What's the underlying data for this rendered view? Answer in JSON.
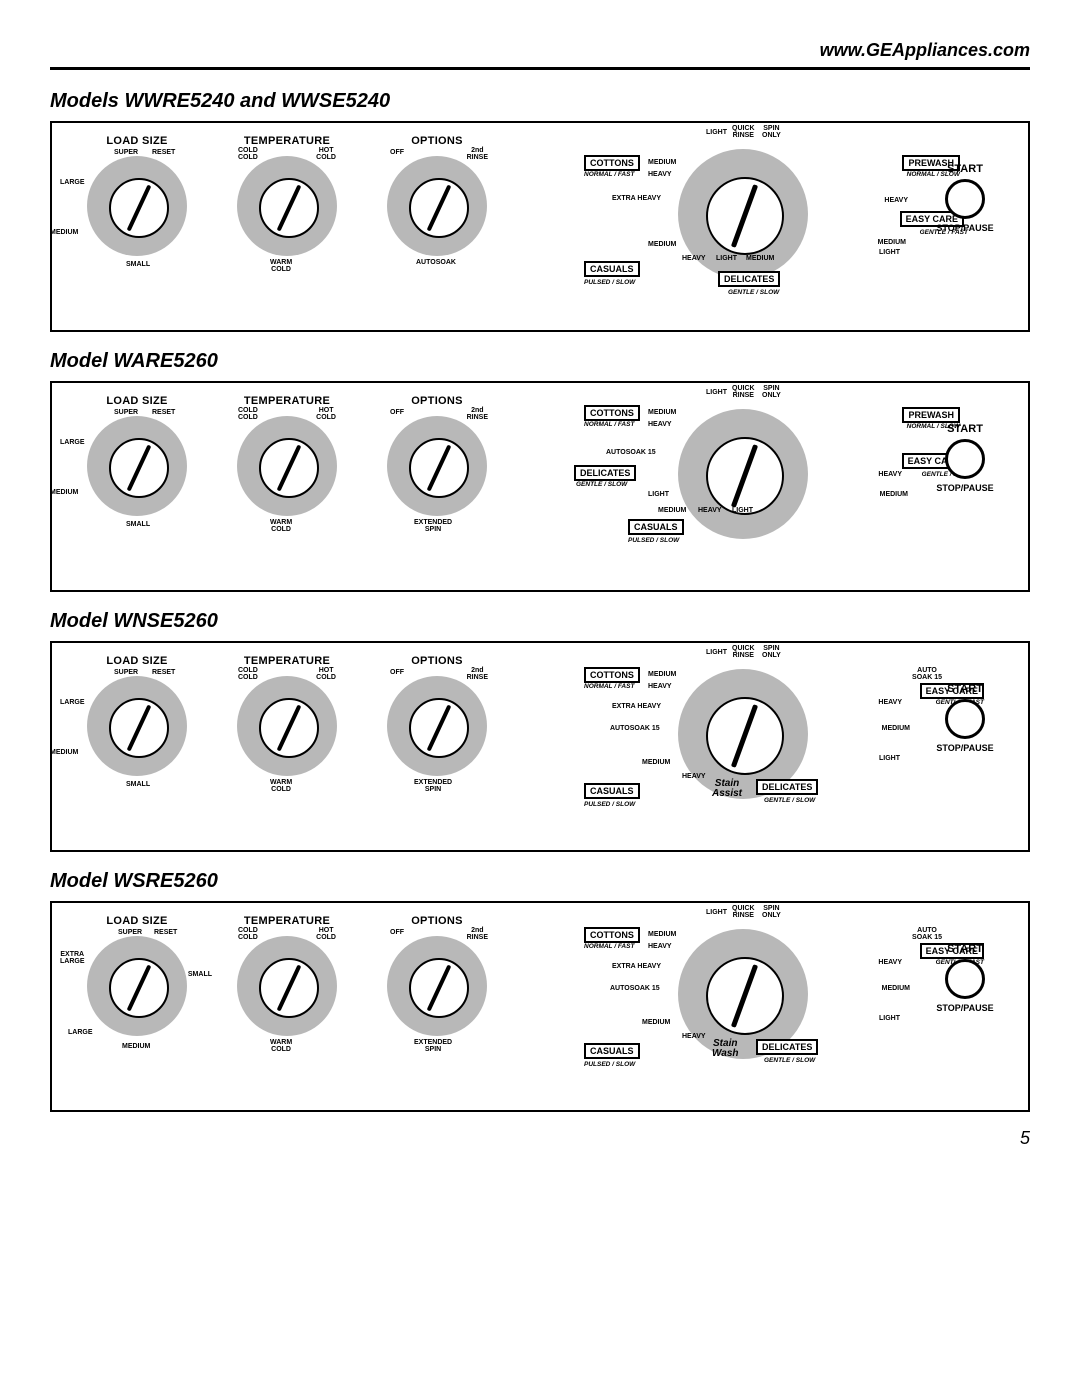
{
  "url": "www.GEAppliances.com",
  "page_number": "5",
  "load_size_title": "LOAD SIZE",
  "temperature_title": "TEMPERATURE",
  "options_title": "OPTIONS",
  "start_label": "START",
  "stop_label": "STOP/PAUSE",
  "ls": {
    "super": "SUPER",
    "reset": "RESET",
    "large": "LARGE",
    "medium": "MEDIUM",
    "small": "SMALL",
    "extra_large": "EXTRA\nLARGE"
  },
  "temp": {
    "cold_cold": "COLD\nCOLD",
    "hot_cold": "HOT\nCOLD",
    "warm_cold": "WARM\nCOLD"
  },
  "opt": {
    "off": "OFF",
    "rinse2": "2nd\nRINSE",
    "autosoak": "AUTOSOAK",
    "extended_spin": "EXTENDED\nSPIN"
  },
  "cycle": {
    "cottons": "COTTONS",
    "prewash": "PREWASH",
    "easy_care": "EASY CARE",
    "delicates": "DELICATES",
    "casuals": "CASUALS",
    "normal_fast": "NORMAL / FAST",
    "normal_slow": "NORMAL / SLOW",
    "gentle_fast": "GENTLE / FAST",
    "gentle_slow": "GENTLE / SLOW",
    "pulsed_slow": "PULSED / SLOW",
    "medium": "MEDIUM",
    "heavy": "HEAVY",
    "extra_heavy": "EXTRA HEAVY",
    "light": "LIGHT",
    "quick_rinse": "QUICK\nRINSE",
    "spin_only": "SPIN\nONLY",
    "autosoak15": "AUTOSOAK 15",
    "auto_soak15": "AUTO\nSOAK 15",
    "stain_assist": "Stain\nAssist",
    "stain_wash": "Stain\nWash"
  },
  "panels": [
    {
      "title": "Models WWRE5240 and WWSE5240",
      "options_bottom": "autosoak",
      "load_variant": "std",
      "cycle_variant": "v1"
    },
    {
      "title": "Model WARE5260",
      "options_bottom": "extended_spin",
      "load_variant": "std",
      "cycle_variant": "v2"
    },
    {
      "title": "Model WNSE5260",
      "options_bottom": "extended_spin",
      "load_variant": "std",
      "cycle_variant": "v3"
    },
    {
      "title": "Model WSRE5260",
      "options_bottom": "extended_spin",
      "load_variant": "xl",
      "cycle_variant": "v4"
    }
  ]
}
